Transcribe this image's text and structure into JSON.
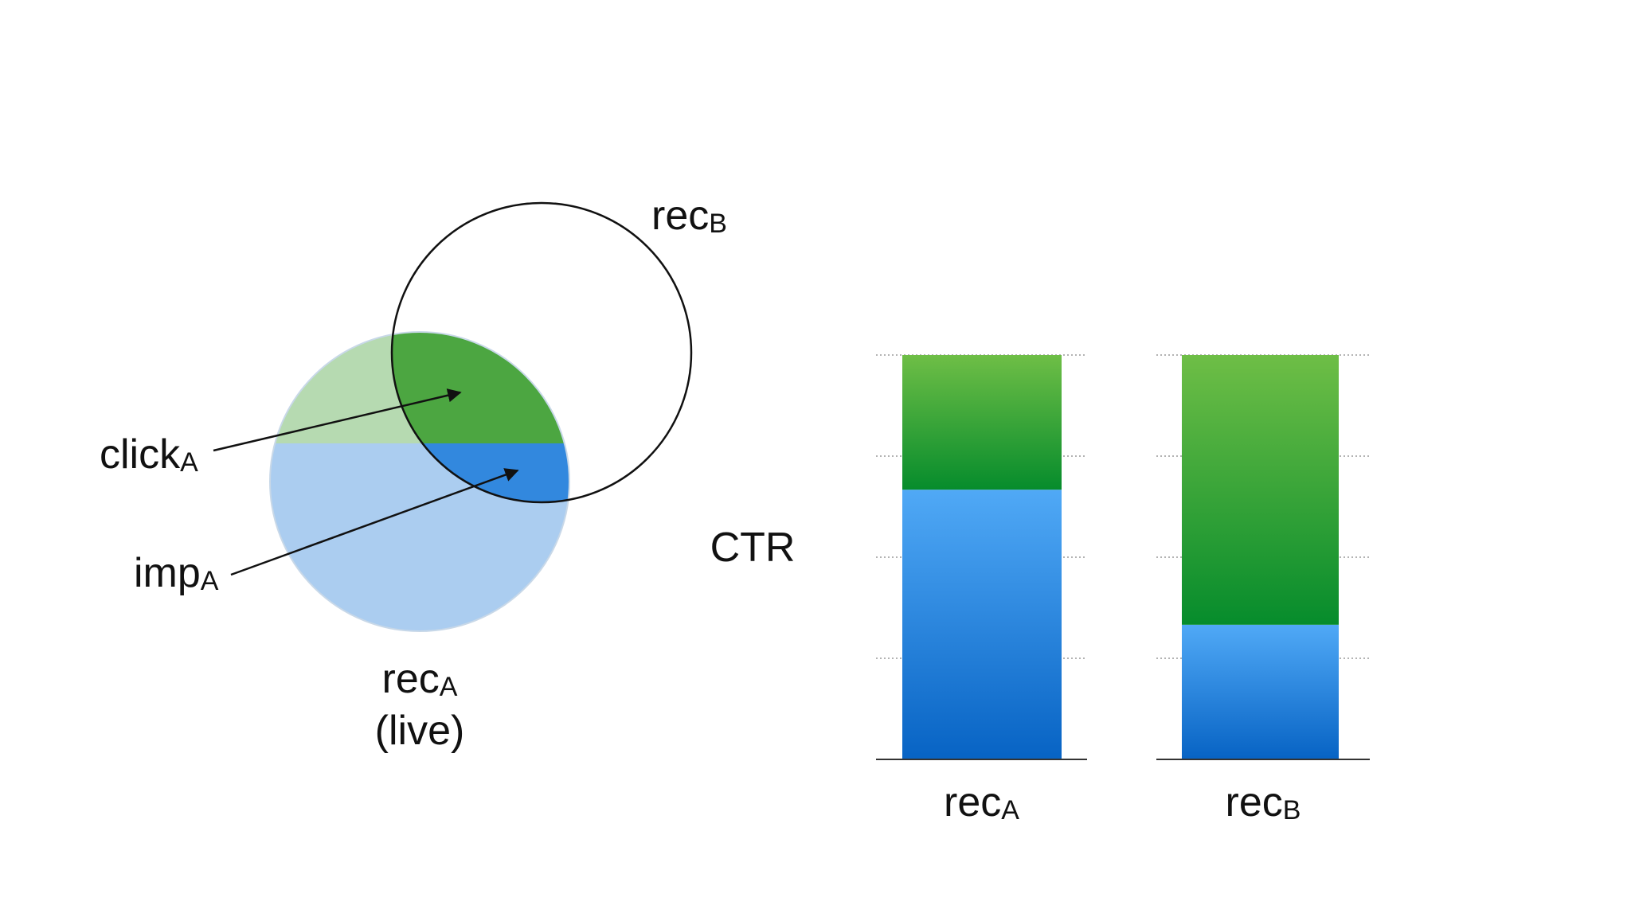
{
  "venn": {
    "rec_b": {
      "base": "rec",
      "sub": "B"
    },
    "rec_a": {
      "base": "rec",
      "sub": "A",
      "note": "(live)"
    },
    "click_a": {
      "base": "click",
      "sub": "A"
    },
    "imp_a": {
      "base": "imp",
      "sub": "A"
    },
    "colors": {
      "click_inside": "#4ca641",
      "click_outside": "#b6dab1",
      "imp_inside": "#3288de",
      "imp_outside": "#abcdf0",
      "outline": "#111111"
    }
  },
  "chart_data": {
    "type": "bar",
    "stacked": true,
    "ylabel": "CTR",
    "categories": [
      {
        "base": "rec",
        "sub": "A"
      },
      {
        "base": "rec",
        "sub": "B"
      }
    ],
    "series": [
      {
        "key": "imp",
        "values": [
          0.667,
          0.333
        ],
        "color_top": "#50a9f6",
        "color_bottom": "#0763c4"
      },
      {
        "key": "click",
        "values": [
          0.333,
          0.667
        ],
        "color_top": "#6ebe46",
        "color_bottom": "#068c2c"
      }
    ],
    "ylim": [
      0,
      1
    ],
    "grid": true,
    "gridlines": 4
  }
}
